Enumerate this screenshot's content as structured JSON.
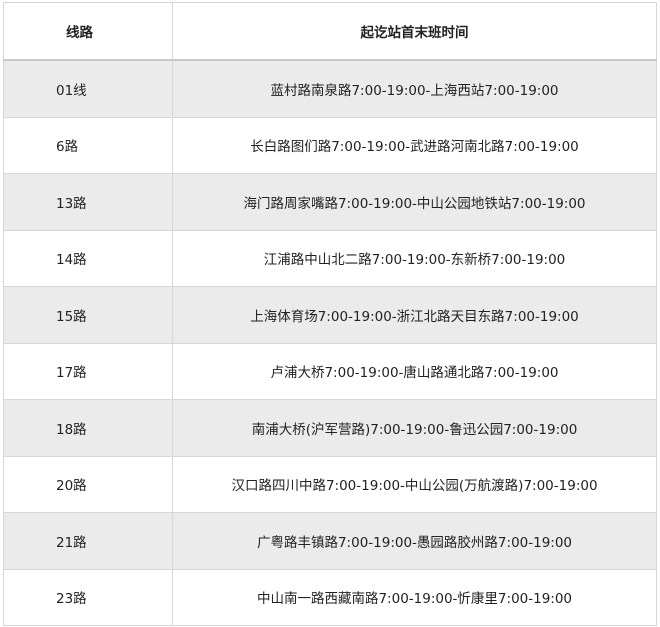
{
  "table": {
    "headers": [
      "线路",
      "起讫站首末班时间"
    ],
    "rows": [
      {
        "route": "01线",
        "schedule": "蓝村路南泉路7:00-19:00-上海西站7:00-19:00"
      },
      {
        "route": "6路",
        "schedule": "长白路图们路7:00-19:00-武进路河南北路7:00-19:00"
      },
      {
        "route": "13路",
        "schedule": "海门路周家嘴路7:00-19:00-中山公园地铁站7:00-19:00"
      },
      {
        "route": "14路",
        "schedule": "江浦路中山北二路7:00-19:00-东新桥7:00-19:00"
      },
      {
        "route": "15路",
        "schedule": "上海体育场7:00-19:00-浙江北路天目东路7:00-19:00"
      },
      {
        "route": "17路",
        "schedule": "卢浦大桥7:00-19:00-唐山路通北路7:00-19:00"
      },
      {
        "route": "18路",
        "schedule": "南浦大桥(沪军营路)7:00-19:00-鲁迅公园7:00-19:00"
      },
      {
        "route": "20路",
        "schedule": "汉口路四川中路7:00-19:00-中山公园(万航渡路)7:00-19:00"
      },
      {
        "route": "21路",
        "schedule": "广粤路丰镇路7:00-19:00-愚园路胶州路7:00-19:00"
      },
      {
        "route": "23路",
        "schedule": "中山南一路西藏南路7:00-19:00-忻康里7:00-19:00"
      }
    ]
  }
}
